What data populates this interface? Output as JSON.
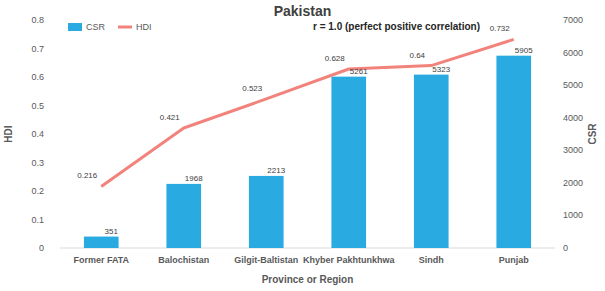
{
  "chart_data": {
    "type": "bar",
    "title": "Pakistan",
    "x_label": "Province or Region",
    "y_label": "HDI",
    "y2_label": "CSR",
    "annotation": "r = 1.0 (perfect positive correlation)",
    "categories": [
      "Former FATA",
      "Balochistan",
      "Gilgit-Baltistan",
      "Khyber Pakhtunkhwa",
      "Sindh",
      "Punjab"
    ],
    "series": [
      {
        "name": "CSR",
        "type": "bar",
        "color": "#29abe2",
        "axis": "y2",
        "values": [
          351,
          1968,
          2213,
          5261,
          5323,
          5905
        ]
      },
      {
        "name": "HDI",
        "type": "line",
        "color": "#f2837c",
        "values": [
          0.216,
          0.421,
          0.523,
          0.628,
          0.64,
          0.732
        ]
      }
    ],
    "ylim": [
      0,
      0.8
    ],
    "yticks": [
      0,
      0.1,
      0.2,
      0.3,
      0.4,
      0.5,
      0.6,
      0.7,
      0.8
    ],
    "y2lim": [
      0,
      7000
    ],
    "y2ticks": [
      0,
      1000,
      2000,
      3000,
      4000,
      5000,
      6000,
      7000
    ],
    "data_labels": true,
    "legend": "top-left",
    "grid": false
  }
}
